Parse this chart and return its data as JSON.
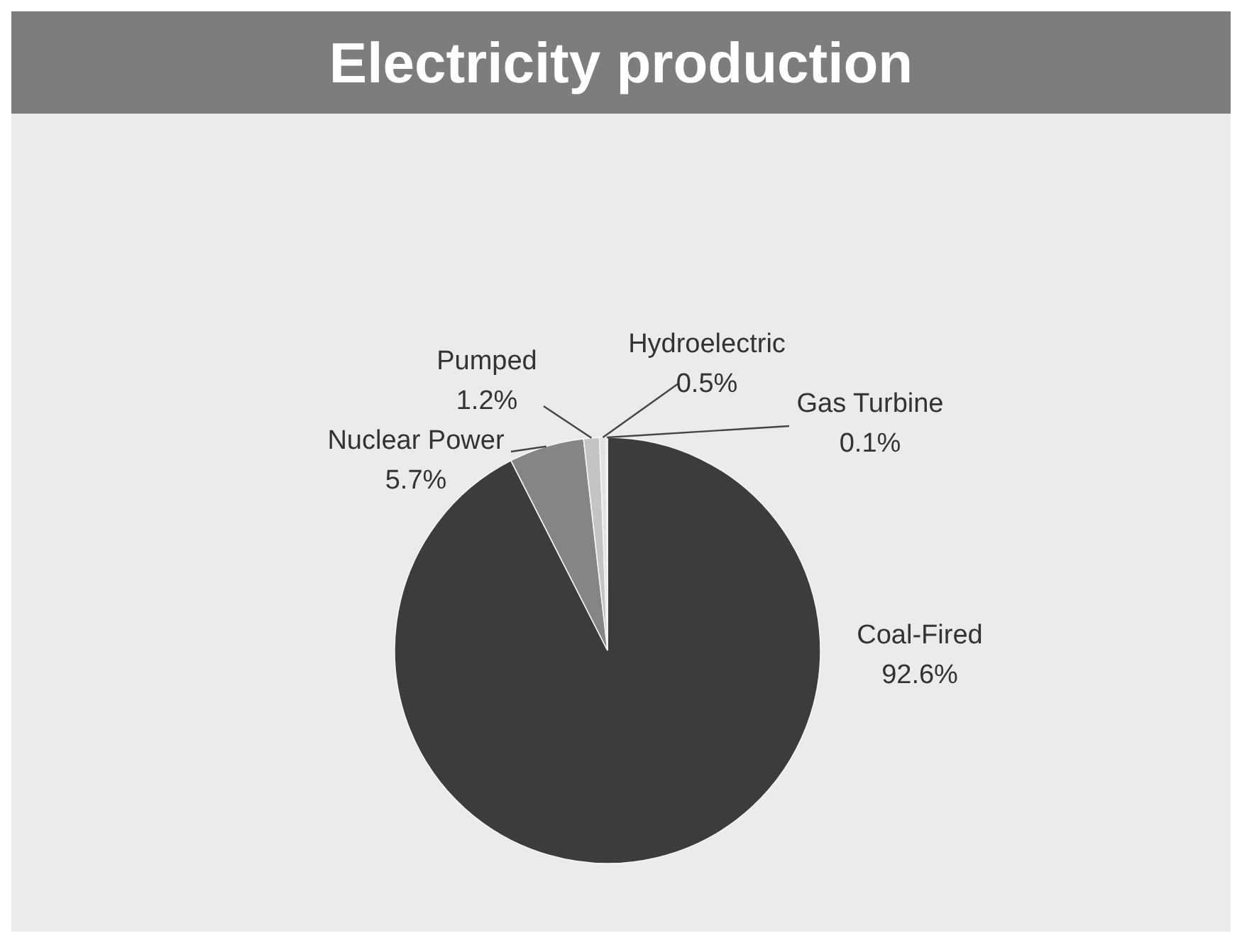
{
  "chart_data": {
    "type": "pie",
    "title": "Electricity production",
    "categories": [
      "Coal-Fired",
      "Nuclear Power",
      "Pumped",
      "Hydroelectric",
      "Gas Turbine"
    ],
    "values": [
      92.6,
      5.7,
      1.2,
      0.5,
      0.1
    ],
    "value_labels": [
      "92.6%",
      "5.7%",
      "1.2%",
      "0.5%",
      "0.1%"
    ],
    "colors": [
      "#3c3c3c",
      "#858585",
      "#c4c4c4",
      "#e2e2e2",
      "#a6a6a6"
    ]
  }
}
